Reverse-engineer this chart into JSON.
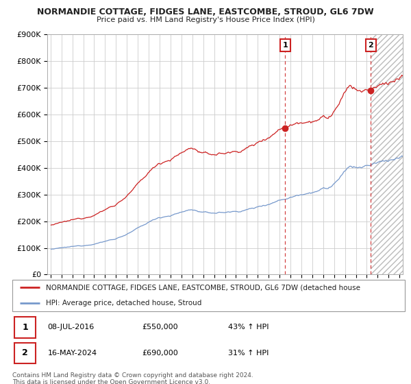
{
  "title": "NORMANDIE COTTAGE, FIDGES LANE, EASTCOMBE, STROUD, GL6 7DW",
  "subtitle": "Price paid vs. HM Land Registry's House Price Index (HPI)",
  "ylim": [
    0,
    900000
  ],
  "yticks": [
    0,
    100000,
    200000,
    300000,
    400000,
    500000,
    600000,
    700000,
    800000,
    900000
  ],
  "xlim_start": 1994.7,
  "xlim_end": 2027.3,
  "red_color": "#cc2222",
  "blue_color": "#7799cc",
  "vline_color": "#cc2222",
  "point1_x": 2016.52,
  "point1_y": 550000,
  "point2_x": 2024.37,
  "point2_y": 690000,
  "legend_red_label": "NORMANDIE COTTAGE, FIDGES LANE, EASTCOMBE, STROUD, GL6 7DW (detached house",
  "legend_blue_label": "HPI: Average price, detached house, Stroud",
  "table_row1": [
    "1",
    "08-JUL-2016",
    "£550,000",
    "43% ↑ HPI"
  ],
  "table_row2": [
    "2",
    "16-MAY-2024",
    "£690,000",
    "31% ↑ HPI"
  ],
  "footer1": "Contains HM Land Registry data © Crown copyright and database right 2024.",
  "footer2": "This data is licensed under the Open Government Licence v3.0.",
  "hatched_x_start": 2024.37,
  "background_color": "#ffffff",
  "grid_color": "#cccccc"
}
